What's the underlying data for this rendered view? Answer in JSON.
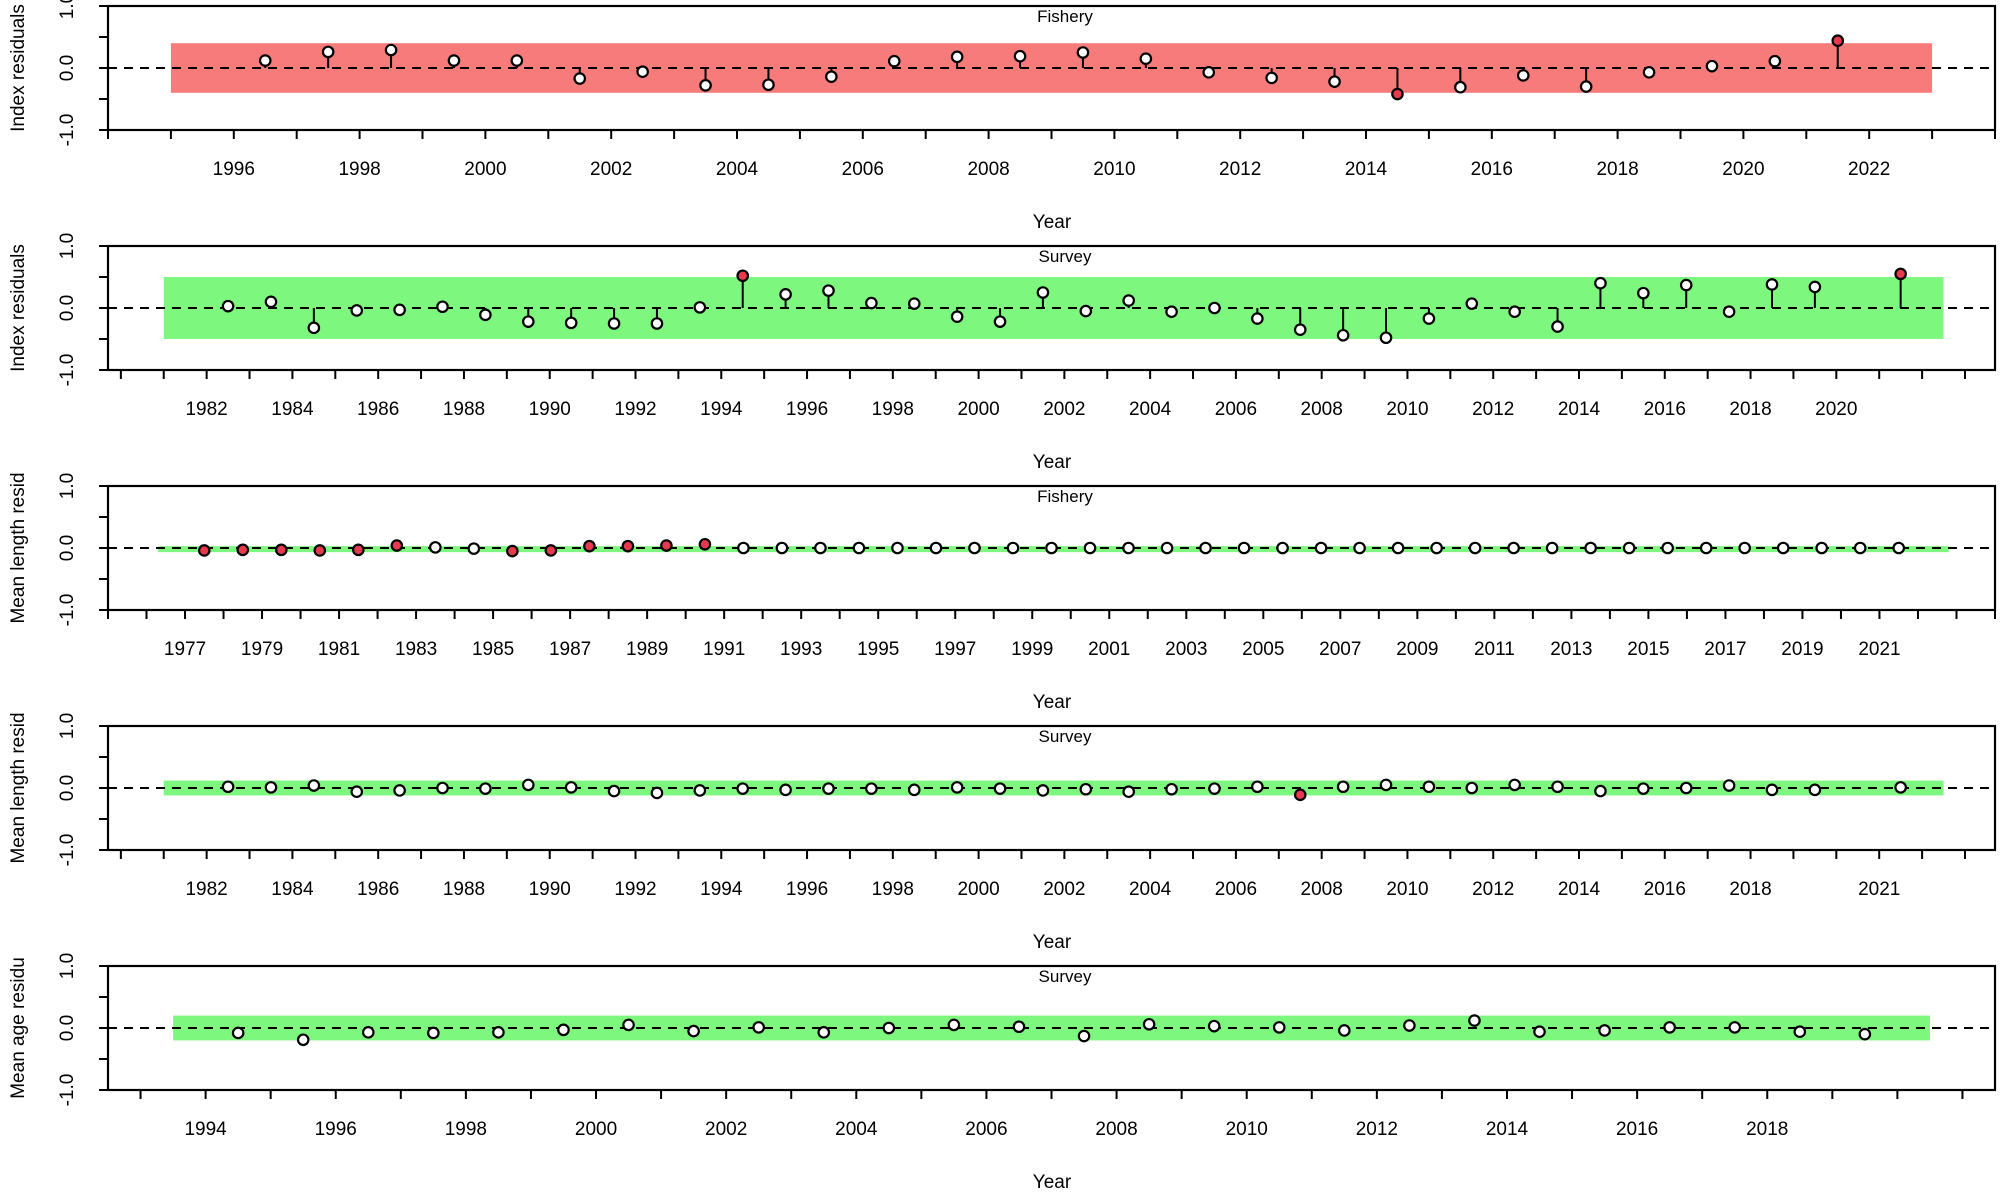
{
  "colors": {
    "red_band": "#f77b7b",
    "green_band": "#7df77d",
    "open_point": "#ffffff",
    "flag_point": "#e8394f"
  },
  "chart_data": [
    {
      "type": "scatter",
      "title": "Fishery",
      "xlabel": "Year",
      "ylabel": "Index residuals",
      "ylim": [
        -1.0,
        1.0
      ],
      "yticks": [
        "-1.0",
        "0.0",
        "1.0"
      ],
      "xlim": [
        1994,
        2024
      ],
      "xticks": [
        "1996",
        "1998",
        "2000",
        "2002",
        "2004",
        "2006",
        "2008",
        "2010",
        "2012",
        "2014",
        "2016",
        "2018",
        "2020",
        "2022"
      ],
      "band": {
        "lo": -0.4,
        "hi": 0.4,
        "x_from": 1995.0,
        "x_to": 2023.0,
        "color": "red"
      },
      "stems": true,
      "x": [
        1996.5,
        1997.5,
        1998.5,
        1999.5,
        2000.5,
        2001.5,
        2002.5,
        2003.5,
        2004.5,
        2005.5,
        2006.5,
        2007.5,
        2008.5,
        2009.5,
        2010.5,
        2011.5,
        2012.5,
        2013.5,
        2014.5,
        2015.5,
        2016.5,
        2017.5,
        2018.5,
        2019.5,
        2020.5,
        2021.5
      ],
      "y": [
        0.12,
        0.26,
        0.29,
        0.12,
        0.12,
        -0.17,
        -0.06,
        -0.28,
        -0.27,
        -0.14,
        0.11,
        0.18,
        0.19,
        0.25,
        0.15,
        -0.07,
        -0.16,
        -0.22,
        -0.42,
        -0.31,
        -0.12,
        -0.3,
        -0.07,
        0.03,
        0.11,
        0.44
      ],
      "flag": [
        false,
        false,
        false,
        false,
        false,
        false,
        false,
        false,
        false,
        false,
        false,
        false,
        false,
        false,
        false,
        false,
        false,
        false,
        true,
        false,
        false,
        false,
        false,
        false,
        false,
        true
      ]
    },
    {
      "type": "scatter",
      "title": "Survey",
      "xlabel": "Year",
      "ylabel": "Index residuals",
      "ylim": [
        -1.0,
        1.0
      ],
      "yticks": [
        "-1.0",
        "0.0",
        "1.0"
      ],
      "xlim": [
        1979.7,
        2023.7
      ],
      "xticks": [
        "1982",
        "1984",
        "1986",
        "1988",
        "1990",
        "1992",
        "1994",
        "1996",
        "1998",
        "2000",
        "2002",
        "2004",
        "2006",
        "2008",
        "2010",
        "2012",
        "2014",
        "2016",
        "2018",
        "2020"
      ],
      "band": {
        "lo": -0.5,
        "hi": 0.5,
        "x_from": 1981.0,
        "x_to": 2022.5,
        "color": "green"
      },
      "stems": true,
      "x": [
        1982.5,
        1983.5,
        1984.5,
        1985.5,
        1986.5,
        1987.5,
        1988.5,
        1989.5,
        1990.5,
        1991.5,
        1992.5,
        1993.5,
        1994.5,
        1995.5,
        1996.5,
        1997.5,
        1998.5,
        1999.5,
        2000.5,
        2001.5,
        2002.5,
        2003.5,
        2004.5,
        2005.5,
        2006.5,
        2007.5,
        2008.5,
        2009.5,
        2010.5,
        2011.5,
        2012.5,
        2013.5,
        2014.5,
        2015.5,
        2016.5,
        2017.5,
        2018.5,
        2019.5,
        2021.5
      ],
      "y": [
        0.03,
        0.1,
        -0.32,
        -0.04,
        -0.03,
        0.02,
        -0.11,
        -0.22,
        -0.24,
        -0.25,
        -0.25,
        0.01,
        0.52,
        0.22,
        0.28,
        0.08,
        0.07,
        -0.14,
        -0.22,
        0.25,
        -0.05,
        0.12,
        -0.06,
        0.0,
        -0.17,
        -0.35,
        -0.44,
        -0.48,
        -0.17,
        0.07,
        -0.06,
        -0.3,
        0.4,
        0.24,
        0.37,
        -0.06,
        0.38,
        0.34,
        0.55
      ],
      "flag": [
        false,
        false,
        false,
        false,
        false,
        false,
        false,
        false,
        false,
        false,
        false,
        false,
        true,
        false,
        false,
        false,
        false,
        false,
        false,
        false,
        false,
        false,
        false,
        false,
        false,
        false,
        false,
        false,
        false,
        false,
        false,
        false,
        false,
        false,
        false,
        false,
        false,
        false,
        true
      ]
    },
    {
      "type": "scatter",
      "title": "Fishery",
      "xlabel": "Year",
      "ylabel": "Mean length resid",
      "ylim": [
        -1.0,
        1.0
      ],
      "yticks": [
        "-1.0",
        "0.0",
        "1.0"
      ],
      "xlim": [
        1975,
        2024
      ],
      "xticks": [
        "1977",
        "1979",
        "1981",
        "1983",
        "1985",
        "1987",
        "1989",
        "1991",
        "1993",
        "1995",
        "1997",
        "1999",
        "2001",
        "2003",
        "2005",
        "2007",
        "2009",
        "2011",
        "2013",
        "2015",
        "2017",
        "2019",
        "2021"
      ],
      "band": {
        "lo": -0.03,
        "hi": 0.03,
        "x_from": 1976.3,
        "x_to": 2022.8,
        "color": "green"
      },
      "stems": false,
      "x": [
        1977.5,
        1978.5,
        1979.5,
        1980.5,
        1981.5,
        1982.5,
        1983.5,
        1984.5,
        1985.5,
        1986.5,
        1987.5,
        1988.5,
        1989.5,
        1990.5,
        1991.5,
        1992.5,
        1993.5,
        1994.5,
        1995.5,
        1996.5,
        1997.5,
        1998.5,
        1999.5,
        2000.5,
        2001.5,
        2002.5,
        2003.5,
        2004.5,
        2005.5,
        2006.5,
        2007.5,
        2008.5,
        2009.5,
        2010.5,
        2011.5,
        2012.5,
        2013.5,
        2014.5,
        2015.5,
        2016.5,
        2017.5,
        2018.5,
        2019.5,
        2020.5,
        2021.5
      ],
      "y": [
        -0.04,
        -0.03,
        -0.03,
        -0.04,
        -0.03,
        0.04,
        0.01,
        -0.01,
        -0.05,
        -0.04,
        0.03,
        0.03,
        0.04,
        0.06,
        0.0,
        0.0,
        0.0,
        0.0,
        0.0,
        0.0,
        0.0,
        0.0,
        0.0,
        0.0,
        0.0,
        0.0,
        0.0,
        0.0,
        0.0,
        0.0,
        0.0,
        0.0,
        0.0,
        0.0,
        0.0,
        0.0,
        0.0,
        0.0,
        0.0,
        0.0,
        0.0,
        0.0,
        0.0,
        0.0,
        0.0
      ],
      "flag": [
        true,
        true,
        true,
        true,
        true,
        true,
        false,
        false,
        true,
        true,
        true,
        true,
        true,
        true,
        false,
        false,
        false,
        false,
        false,
        false,
        false,
        false,
        false,
        false,
        false,
        false,
        false,
        false,
        false,
        false,
        false,
        false,
        false,
        false,
        false,
        false,
        false,
        false,
        false,
        false,
        false,
        false,
        false,
        false,
        false
      ]
    },
    {
      "type": "scatter",
      "title": "Survey",
      "xlabel": "Year",
      "ylabel": "Mean length resid",
      "ylim": [
        -1.0,
        1.0
      ],
      "yticks": [
        "-1.0",
        "0.0",
        "1.0"
      ],
      "xlim": [
        1979.7,
        2023.7
      ],
      "xticks": [
        "1982",
        "1984",
        "1986",
        "1988",
        "1990",
        "1992",
        "1994",
        "1996",
        "1998",
        "2000",
        "2002",
        "2004",
        "2006",
        "2008",
        "2010",
        "2012",
        "2014",
        "2016",
        "2018",
        "2021"
      ],
      "xtick_positions": [
        1982,
        1984,
        1986,
        1988,
        1990,
        1992,
        1994,
        1996,
        1998,
        2000,
        2002,
        2004,
        2006,
        2008,
        2010,
        2012,
        2014,
        2016,
        2018,
        2021
      ],
      "band": {
        "lo": -0.12,
        "hi": 0.12,
        "x_from": 1981.0,
        "x_to": 2022.5,
        "color": "green"
      },
      "stems": false,
      "x": [
        1982.5,
        1983.5,
        1984.5,
        1985.5,
        1986.5,
        1987.5,
        1988.5,
        1989.5,
        1990.5,
        1991.5,
        1992.5,
        1993.5,
        1994.5,
        1995.5,
        1996.5,
        1997.5,
        1998.5,
        1999.5,
        2000.5,
        2001.5,
        2002.5,
        2003.5,
        2004.5,
        2005.5,
        2006.5,
        2007.5,
        2008.5,
        2009.5,
        2010.5,
        2011.5,
        2012.5,
        2013.5,
        2014.5,
        2015.5,
        2016.5,
        2017.5,
        2018.5,
        2019.5,
        2021.5
      ],
      "y": [
        0.02,
        0.01,
        0.04,
        -0.06,
        -0.04,
        0.0,
        -0.01,
        0.05,
        0.01,
        -0.05,
        -0.08,
        -0.04,
        -0.01,
        -0.03,
        -0.01,
        -0.01,
        -0.03,
        0.01,
        -0.01,
        -0.04,
        -0.02,
        -0.06,
        -0.02,
        -0.01,
        0.02,
        -0.11,
        0.02,
        0.05,
        0.02,
        0.0,
        0.05,
        0.02,
        -0.05,
        -0.01,
        0.0,
        0.04,
        -0.03,
        -0.03,
        0.01
      ],
      "flag": [
        false,
        false,
        false,
        false,
        false,
        false,
        false,
        false,
        false,
        false,
        false,
        false,
        false,
        false,
        false,
        false,
        false,
        false,
        false,
        false,
        false,
        false,
        false,
        false,
        false,
        true,
        false,
        false,
        false,
        false,
        false,
        false,
        false,
        false,
        false,
        false,
        false,
        false,
        false
      ]
    },
    {
      "type": "scatter",
      "title": "Survey",
      "xlabel": "Year",
      "ylabel": "Mean age residu",
      "ylim": [
        -1.0,
        1.0
      ],
      "yticks": [
        "-1.0",
        "0.0",
        "1.0"
      ],
      "xlim": [
        1992.5,
        2021.5
      ],
      "xticks": [
        "1994",
        "1996",
        "1998",
        "2000",
        "2002",
        "2004",
        "2006",
        "2008",
        "2010",
        "2012",
        "2014",
        "2016",
        "2018"
      ],
      "band": {
        "lo": -0.2,
        "hi": 0.2,
        "x_from": 1993.5,
        "x_to": 2020.5,
        "color": "green"
      },
      "stems": false,
      "x": [
        1994.5,
        1995.5,
        1996.5,
        1997.5,
        1998.5,
        1999.5,
        2000.5,
        2001.5,
        2002.5,
        2003.5,
        2004.5,
        2005.5,
        2006.5,
        2007.5,
        2008.5,
        2009.5,
        2010.5,
        2011.5,
        2012.5,
        2013.5,
        2014.5,
        2015.5,
        2016.5,
        2017.5,
        2018.5,
        2019.5
      ],
      "y": [
        -0.08,
        -0.19,
        -0.07,
        -0.08,
        -0.07,
        -0.03,
        0.05,
        -0.05,
        0.01,
        -0.07,
        0.0,
        0.05,
        0.02,
        -0.13,
        0.06,
        0.03,
        0.01,
        -0.04,
        0.04,
        0.12,
        -0.06,
        -0.04,
        0.01,
        0.01,
        -0.06,
        -0.1
      ],
      "flag": [
        false,
        false,
        false,
        false,
        false,
        false,
        false,
        false,
        false,
        false,
        false,
        false,
        false,
        false,
        false,
        false,
        false,
        false,
        false,
        false,
        false,
        false,
        false,
        false,
        false,
        false
      ]
    }
  ]
}
